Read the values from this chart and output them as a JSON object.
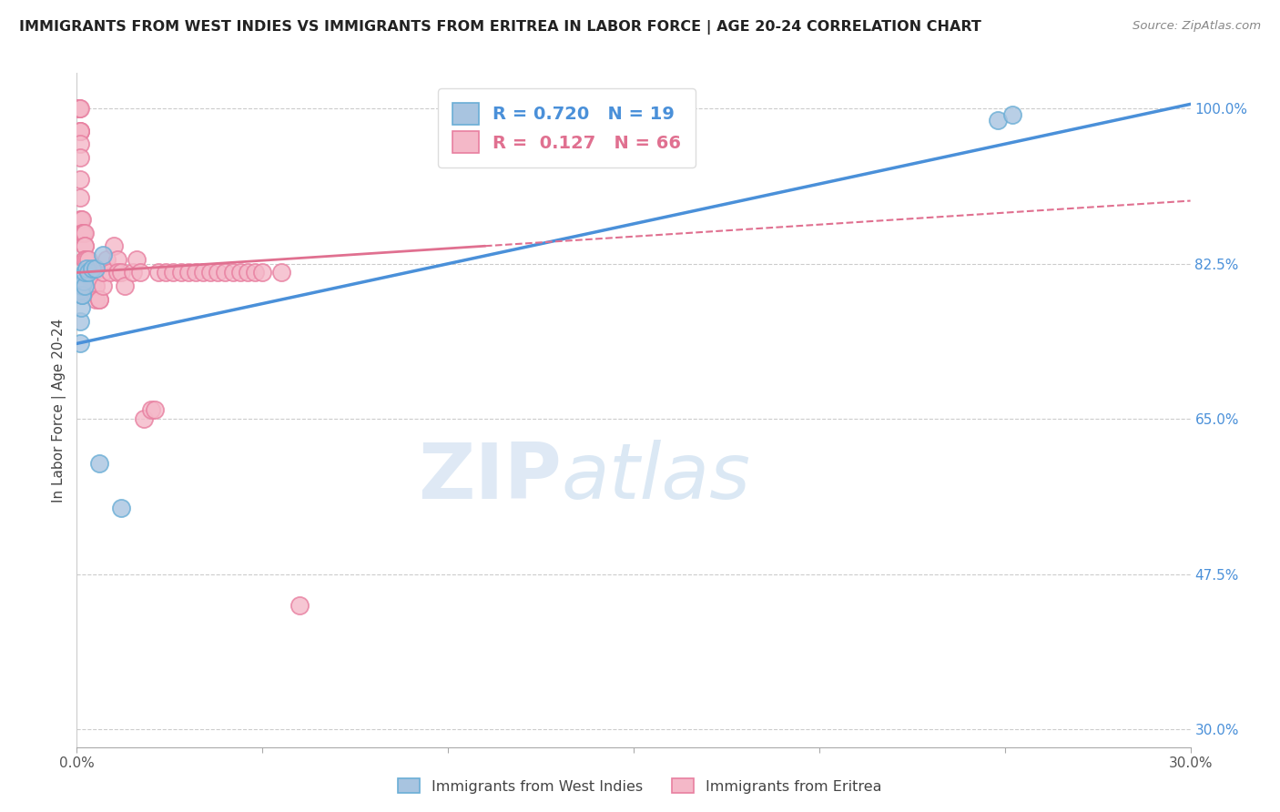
{
  "title": "IMMIGRANTS FROM WEST INDIES VS IMMIGRANTS FROM ERITREA IN LABOR FORCE | AGE 20-24 CORRELATION CHART",
  "source": "Source: ZipAtlas.com",
  "xlabel": "",
  "ylabel": "In Labor Force | Age 20-24",
  "xlim": [
    0.0,
    0.3
  ],
  "ylim": [
    0.28,
    1.04
  ],
  "xticks": [
    0.0,
    0.05,
    0.1,
    0.15,
    0.2,
    0.25,
    0.3
  ],
  "xticklabels": [
    "0.0%",
    "",
    "",
    "",
    "",
    "",
    "30.0%"
  ],
  "ytick_positions": [
    0.3,
    0.475,
    0.65,
    0.825,
    1.0
  ],
  "ytick_labels": [
    "30.0%",
    "47.5%",
    "65.0%",
    "82.5%",
    "100.0%"
  ],
  "west_indies_color": "#a8c4e0",
  "west_indies_edge": "#6aaed6",
  "eritrea_color": "#f4b8c8",
  "eritrea_edge": "#e87fa0",
  "legend_R_wi": "0.720",
  "legend_N_wi": "19",
  "legend_R_er": "0.127",
  "legend_N_er": "66",
  "legend_label_wi": "Immigrants from West Indies",
  "legend_label_er": "Immigrants from Eritrea",
  "watermark_zip": "ZIP",
  "watermark_atlas": "atlas",
  "trend_blue_color": "#4a90d9",
  "trend_pink_color": "#e07090",
  "trend_blue_x0": 0.0,
  "trend_blue_y0": 0.735,
  "trend_blue_x1": 0.3,
  "trend_blue_y1": 1.005,
  "trend_pink_solid_x0": 0.0,
  "trend_pink_solid_y0": 0.815,
  "trend_pink_solid_x1": 0.11,
  "trend_pink_solid_y1": 0.845,
  "trend_pink_dash_x0": 0.11,
  "trend_pink_dash_y0": 0.845,
  "trend_pink_dash_x1": 0.3,
  "trend_pink_dash_y1": 0.896,
  "west_indies_x": [
    0.0008,
    0.0009,
    0.001,
    0.0012,
    0.0013,
    0.0014,
    0.0015,
    0.0018,
    0.002,
    0.0022,
    0.0025,
    0.003,
    0.004,
    0.005,
    0.006,
    0.007,
    0.012,
    0.248,
    0.252
  ],
  "west_indies_y": [
    0.795,
    0.76,
    0.735,
    0.775,
    0.79,
    0.8,
    0.79,
    0.805,
    0.8,
    0.815,
    0.82,
    0.815,
    0.82,
    0.82,
    0.6,
    0.835,
    0.55,
    0.987,
    0.993
  ],
  "eritrea_x": [
    0.0005,
    0.0006,
    0.0007,
    0.0008,
    0.0008,
    0.0009,
    0.001,
    0.001,
    0.001,
    0.001,
    0.001,
    0.001,
    0.0012,
    0.0013,
    0.0015,
    0.0016,
    0.0018,
    0.002,
    0.002,
    0.002,
    0.002,
    0.0022,
    0.0025,
    0.003,
    0.003,
    0.003,
    0.004,
    0.004,
    0.004,
    0.005,
    0.005,
    0.005,
    0.006,
    0.006,
    0.007,
    0.007,
    0.008,
    0.009,
    0.01,
    0.011,
    0.011,
    0.012,
    0.013,
    0.015,
    0.016,
    0.017,
    0.018,
    0.02,
    0.021,
    0.022,
    0.024,
    0.026,
    0.028,
    0.03,
    0.032,
    0.034,
    0.036,
    0.038,
    0.04,
    0.042,
    0.044,
    0.046,
    0.048,
    0.05,
    0.055,
    0.06
  ],
  "eritrea_y": [
    1.0,
    1.0,
    1.0,
    1.0,
    0.975,
    0.975,
    0.975,
    0.96,
    0.945,
    0.92,
    0.9,
    0.875,
    0.875,
    0.875,
    0.86,
    0.86,
    0.86,
    0.86,
    0.845,
    0.845,
    0.83,
    0.83,
    0.83,
    0.83,
    0.815,
    0.815,
    0.815,
    0.8,
    0.8,
    0.8,
    0.8,
    0.785,
    0.785,
    0.785,
    0.8,
    0.815,
    0.83,
    0.815,
    0.845,
    0.83,
    0.815,
    0.815,
    0.8,
    0.815,
    0.83,
    0.815,
    0.65,
    0.66,
    0.66,
    0.815,
    0.815,
    0.815,
    0.815,
    0.815,
    0.815,
    0.815,
    0.815,
    0.815,
    0.815,
    0.815,
    0.815,
    0.815,
    0.815,
    0.815,
    0.815,
    0.44
  ]
}
